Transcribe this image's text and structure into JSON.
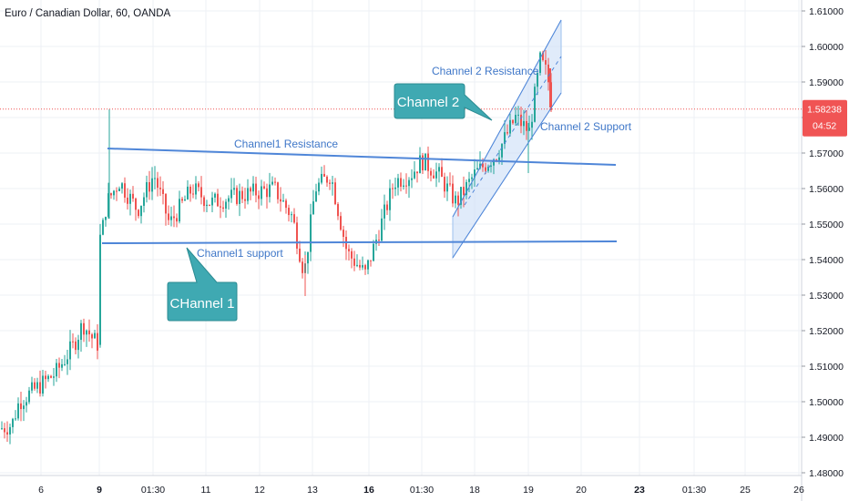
{
  "header": {
    "title": "Euro / Canadian Dollar, 60, OANDA"
  },
  "colors": {
    "up": "#26a69a",
    "down": "#ef5350",
    "grid": "#eef1f5",
    "line": "#4f86d8",
    "label": "#3f77c8",
    "callout": "#3fa9b2",
    "callout_edge": "#2b8b92",
    "current": "#f05454",
    "channel_fill": "#cfe0f8"
  },
  "chart_data": {
    "type": "candlestick",
    "symbol": "EURCAD",
    "timeframe": "60",
    "y_ticks": [
      "1.48000",
      "1.49000",
      "1.50000",
      "1.51000",
      "1.52000",
      "1.53000",
      "1.54000",
      "1.55000",
      "1.56000",
      "1.57000",
      "1.58000",
      "1.59000",
      "1.60000",
      "1.61000"
    ],
    "x_ticks": [
      "6",
      "9",
      "01:30",
      "11",
      "12",
      "13",
      "16",
      "01:30",
      "18",
      "19",
      "20",
      "23",
      "01:30",
      "25",
      "26"
    ],
    "x_tick_bold": [
      "9",
      "16",
      "23"
    ],
    "ylim": [
      1.48,
      1.612
    ],
    "current_price": {
      "price_label": "1.58238",
      "value": 1.58238,
      "countdown": "04:52"
    },
    "candles_ohlc_approx": [
      [
        1.493,
        1.4945,
        1.4905,
        1.4925
      ],
      [
        1.4925,
        1.499,
        1.491,
        1.4975
      ],
      [
        1.4975,
        1.504,
        1.495,
        1.503
      ],
      [
        1.503,
        1.508,
        1.5,
        1.5055
      ],
      [
        1.5055,
        1.509,
        1.501,
        1.5045
      ],
      [
        1.5045,
        1.511,
        1.503,
        1.5095
      ],
      [
        1.5095,
        1.518,
        1.506,
        1.516
      ],
      [
        1.516,
        1.524,
        1.513,
        1.522
      ],
      [
        1.522,
        1.525,
        1.515,
        1.517
      ],
      [
        1.517,
        1.522,
        1.514,
        1.519
      ],
      [
        1.519,
        1.548,
        1.517,
        1.546
      ],
      [
        1.546,
        1.582,
        1.544,
        1.556
      ],
      [
        1.556,
        1.57,
        1.548,
        1.562
      ],
      [
        1.562,
        1.568,
        1.55,
        1.553
      ],
      [
        1.553,
        1.564,
        1.544,
        1.56
      ],
      [
        1.56,
        1.57,
        1.554,
        1.558
      ],
      [
        1.558,
        1.566,
        1.547,
        1.552
      ],
      [
        1.552,
        1.562,
        1.545,
        1.557
      ],
      [
        1.557,
        1.566,
        1.55,
        1.552
      ],
      [
        1.552,
        1.56,
        1.546,
        1.556
      ],
      [
        1.556,
        1.57,
        1.552,
        1.562
      ],
      [
        1.562,
        1.565,
        1.548,
        1.551
      ],
      [
        1.551,
        1.564,
        1.548,
        1.56
      ],
      [
        1.56,
        1.562,
        1.545,
        1.549
      ],
      [
        1.549,
        1.556,
        1.53,
        1.542
      ],
      [
        1.542,
        1.558,
        1.538,
        1.556
      ],
      [
        1.556,
        1.566,
        1.552,
        1.56
      ],
      [
        1.56,
        1.561,
        1.538,
        1.542
      ],
      [
        1.542,
        1.552,
        1.535,
        1.548
      ],
      [
        1.548,
        1.555,
        1.532,
        1.537
      ],
      [
        1.537,
        1.55,
        1.534,
        1.546
      ],
      [
        1.546,
        1.562,
        1.543,
        1.56
      ],
      [
        1.56,
        1.568,
        1.555,
        1.565
      ],
      [
        1.565,
        1.568,
        1.556,
        1.56
      ],
      [
        1.56,
        1.566,
        1.548,
        1.552
      ],
      [
        1.552,
        1.562,
        1.549,
        1.559
      ],
      [
        1.559,
        1.57,
        1.556,
        1.566
      ],
      [
        1.566,
        1.57,
        1.56,
        1.564
      ],
      [
        1.564,
        1.572,
        1.56,
        1.569
      ],
      [
        1.569,
        1.578,
        1.565,
        1.574
      ],
      [
        1.574,
        1.582,
        1.568,
        1.578
      ],
      [
        1.578,
        1.588,
        1.572,
        1.585
      ],
      [
        1.585,
        1.592,
        1.578,
        1.59
      ],
      [
        1.59,
        1.6,
        1.584,
        1.596
      ],
      [
        1.596,
        1.597,
        1.58,
        1.5824
      ]
    ]
  },
  "annotations": {
    "ch1_res": "Channel1 Resistance",
    "ch1_sup": "Channel1 support",
    "ch2_res": "Channel 2 Resistance",
    "ch2_sup": "Channel 2 Support",
    "callout1": "CHannel 1",
    "callout2": "Channel 2"
  }
}
